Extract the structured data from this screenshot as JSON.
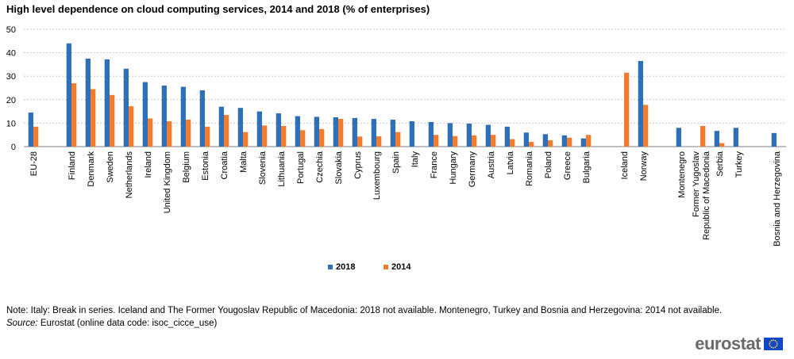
{
  "colors": {
    "s2018": "#2e6fb7",
    "s2014": "#ed7d31",
    "grid": "#c9c9c9",
    "axis": "#7f7f7f"
  },
  "legend": {
    "label_2018": "2018",
    "label_2014": "2014"
  },
  "footer": {
    "note": "Note: Italy: Break in series. Iceland and The Former Yougoslav Republic of Macedonia: 2018 not available. Montenegro, Turkey and Bosnia and Herzegovina: 2014 not available.",
    "source_label": "Source:",
    "source_text": " Eurostat (online data code: isoc_cicce_use)"
  },
  "logo": {
    "text": "eurostat"
  },
  "chart_data": {
    "type": "bar",
    "title": "High level dependence on cloud computing services, 2014 and 2018 (% of enterprises)",
    "xlabel": "",
    "ylabel": "",
    "ylim": [
      0,
      50
    ],
    "yticks": [
      0,
      10,
      20,
      30,
      40,
      50
    ],
    "grid": true,
    "legend_position": "bottom-center",
    "categories": [
      "EU-28",
      "",
      "Finland",
      "Denmark",
      "Sweden",
      "Netherlands",
      "Ireland",
      "United Kingdom",
      "Belgium",
      "Estonia",
      "Croatia",
      "Malta",
      "Slovenia",
      "Lithuania",
      "Portugal",
      "Czechia",
      "Slovakia",
      "Cyprus",
      "Luxembourg",
      "Spain",
      "Italy",
      "France",
      "Hungary",
      "Germany",
      "Austria",
      "Latvia",
      "Romania",
      "Poland",
      "Greece",
      "Bulgaria",
      "",
      "Iceland",
      "Norway",
      "",
      "Montenegro",
      "Former Yugoslav Republic of Macedonia",
      "Serbia",
      "Turkey",
      "",
      "Bosnia and Herzegovina"
    ],
    "series": [
      {
        "name": "2018",
        "values": [
          14.5,
          null,
          44,
          37.5,
          37.2,
          33.2,
          27.5,
          26,
          25.5,
          24,
          17,
          16.5,
          15,
          14.2,
          13,
          12.7,
          12.5,
          12.2,
          11.8,
          11.5,
          10.8,
          10.5,
          10,
          9.8,
          9.3,
          8.5,
          6,
          5.3,
          4.8,
          3.5,
          null,
          null,
          36.5,
          null,
          8,
          null,
          6.7,
          8,
          null,
          5.8
        ]
      },
      {
        "name": "2014",
        "values": [
          8.5,
          null,
          27,
          24.5,
          22,
          17.2,
          12,
          10.8,
          11.5,
          8.5,
          13.5,
          6.2,
          9,
          8.8,
          7,
          7.5,
          11.8,
          4.3,
          4.4,
          6.2,
          null,
          5,
          4.5,
          4.8,
          5,
          3.2,
          2,
          2.7,
          3.8,
          5,
          null,
          31.5,
          17.8,
          null,
          null,
          8.8,
          1.5,
          null,
          null,
          null
        ]
      }
    ]
  }
}
